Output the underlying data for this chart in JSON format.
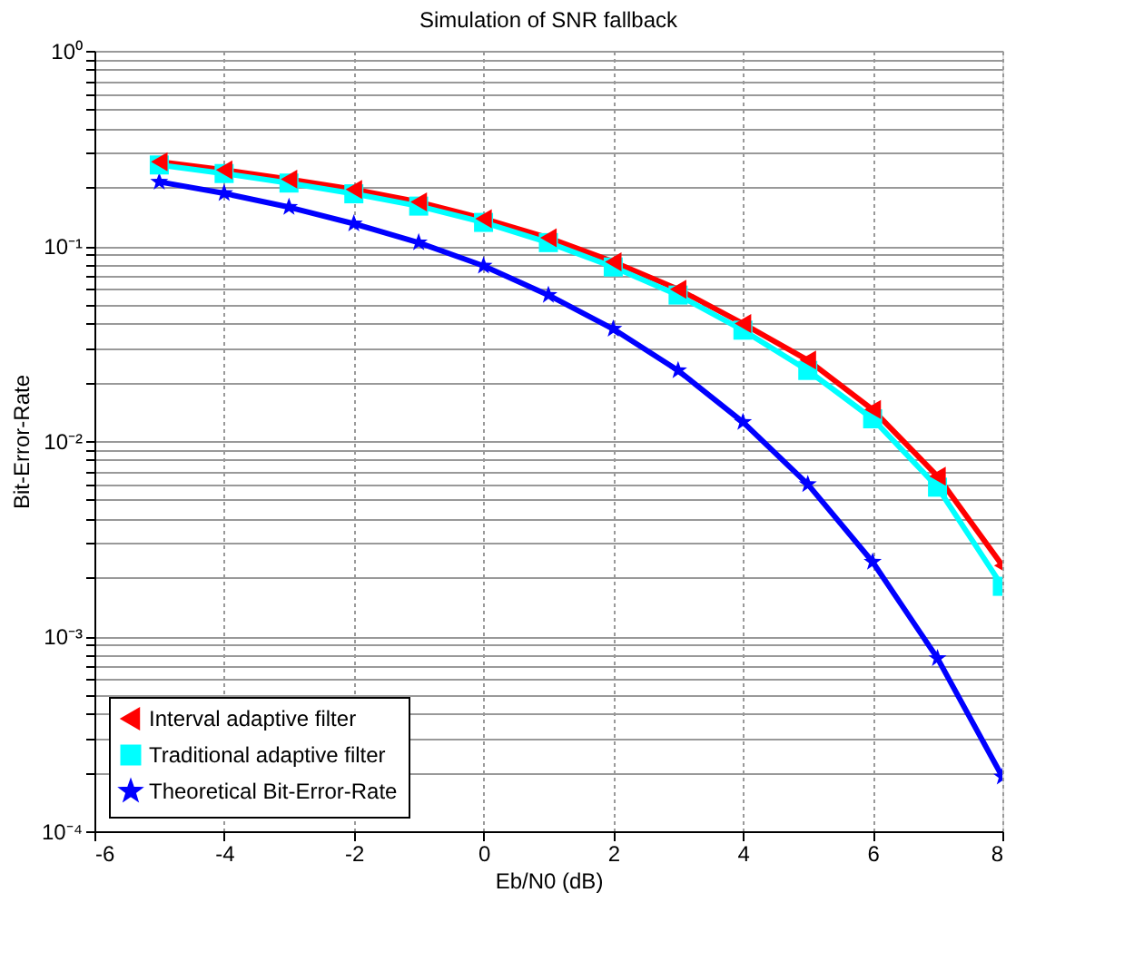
{
  "chart_data": {
    "type": "line",
    "title": "Simulation of SNR fallback",
    "xlabel": "Eb/N0 (dB)",
    "ylabel": "Bit-Error-Rate",
    "x": [
      -5,
      -4,
      -3,
      -2,
      -1,
      0,
      1,
      2,
      3,
      4,
      5,
      6,
      7,
      8
    ],
    "series": [
      {
        "name": "Interval adaptive filter",
        "color": "#ff0000",
        "marker": "triangle",
        "values": [
          0.27,
          0.245,
          0.22,
          0.195,
          0.168,
          0.138,
          0.11,
          0.083,
          0.06,
          0.04,
          0.026,
          0.0145,
          0.0066,
          0.0023
        ]
      },
      {
        "name": "Traditional adaptive filter",
        "color": "#00ffff",
        "marker": "square",
        "values": [
          0.26,
          0.235,
          0.21,
          0.185,
          0.16,
          0.132,
          0.104,
          0.078,
          0.056,
          0.037,
          0.023,
          0.013,
          0.0058,
          0.0018
        ]
      },
      {
        "name": "Theoretical Bit-Error-Rate",
        "color": "#0000ff",
        "marker": "star",
        "values": [
          0.213,
          0.186,
          0.158,
          0.13,
          0.104,
          0.079,
          0.056,
          0.0375,
          0.023,
          0.0125,
          0.006,
          0.0024,
          0.00077,
          0.00019
        ]
      }
    ],
    "log": "y",
    "xlim": [
      -6,
      8
    ],
    "xticks": [
      -6,
      -4,
      -2,
      0,
      2,
      4,
      6,
      8
    ],
    "ylim": [
      0.0001,
      1
    ],
    "yticks": [
      {
        "value": 0.0001,
        "label": "10⁻⁴"
      },
      {
        "value": 0.0002,
        "label": null
      },
      {
        "value": 0.0003,
        "label": null
      },
      {
        "value": 0.0004,
        "label": null
      },
      {
        "value": 0.0005,
        "label": null
      },
      {
        "value": 0.0006,
        "label": null
      },
      {
        "value": 0.0007,
        "label": null
      },
      {
        "value": 0.0008,
        "label": null
      },
      {
        "value": 0.0009,
        "label": null
      },
      {
        "value": 0.001,
        "label": "10⁻³"
      },
      {
        "value": 0.002,
        "label": null
      },
      {
        "value": 0.003,
        "label": null
      },
      {
        "value": 0.004,
        "label": null
      },
      {
        "value": 0.005,
        "label": null
      },
      {
        "value": 0.006,
        "label": null
      },
      {
        "value": 0.007,
        "label": null
      },
      {
        "value": 0.008,
        "label": null
      },
      {
        "value": 0.009,
        "label": null
      },
      {
        "value": 0.01,
        "label": "10⁻²"
      },
      {
        "value": 0.02,
        "label": null
      },
      {
        "value": 0.03,
        "label": null
      },
      {
        "value": 0.04,
        "label": null
      },
      {
        "value": 0.05,
        "label": null
      },
      {
        "value": 0.06,
        "label": null
      },
      {
        "value": 0.07,
        "label": null
      },
      {
        "value": 0.08,
        "label": null
      },
      {
        "value": 0.09,
        "label": null
      },
      {
        "value": 0.1,
        "label": "10⁻¹"
      },
      {
        "value": 0.2,
        "label": null
      },
      {
        "value": 0.3,
        "label": null
      },
      {
        "value": 0.4,
        "label": null
      },
      {
        "value": 0.5,
        "label": null
      },
      {
        "value": 0.6,
        "label": null
      },
      {
        "value": 0.7,
        "label": null
      },
      {
        "value": 0.8,
        "label": null
      },
      {
        "value": 0.9,
        "label": null
      },
      {
        "value": 1,
        "label": "10⁰"
      }
    ],
    "grid": true,
    "legend": "bottom left",
    "line_style": "solid"
  }
}
